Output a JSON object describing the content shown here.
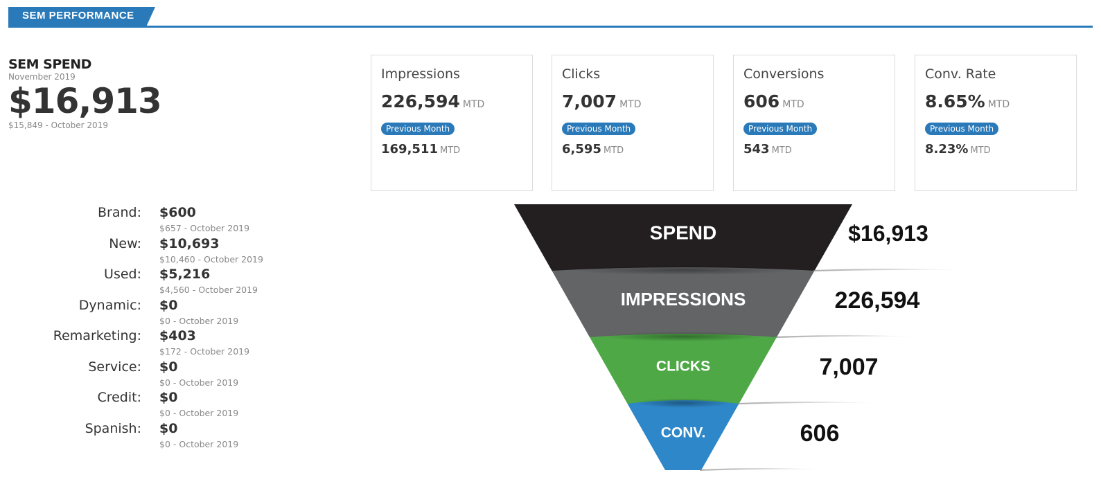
{
  "header": {
    "title": "SEM PERFORMANCE"
  },
  "spend": {
    "title": "SEM SPEND",
    "period": "November 2019",
    "value": "$16,913",
    "previous": "$15,849 - October 2019"
  },
  "breakdown": [
    {
      "label": "Brand:",
      "value": "$600",
      "previous": "$657 - October 2019"
    },
    {
      "label": "New:",
      "value": "$10,693",
      "previous": "$10,460 - October 2019"
    },
    {
      "label": "Used:",
      "value": "$5,216",
      "previous": "$4,560 - October 2019"
    },
    {
      "label": "Dynamic:",
      "value": "$0",
      "previous": "$0 - October 2019"
    },
    {
      "label": "Remarketing:",
      "value": "$403",
      "previous": "$172 - October 2019"
    },
    {
      "label": "Service:",
      "value": "$0",
      "previous": "$0 - October 2019"
    },
    {
      "label": "Credit:",
      "value": "$0",
      "previous": "$0 - October 2019"
    },
    {
      "label": "Spanish:",
      "value": "$0",
      "previous": "$0 - October 2019"
    }
  ],
  "kpis": [
    {
      "name": "Impressions",
      "value": "226,594",
      "unit": "MTD",
      "badge": "Previous Month",
      "previous": "169,511",
      "previous_unit": "MTD"
    },
    {
      "name": "Clicks",
      "value": "7,007",
      "unit": "MTD",
      "badge": "Previous Month",
      "previous": "6,595",
      "previous_unit": "MTD"
    },
    {
      "name": "Conversions",
      "value": "606",
      "unit": "MTD",
      "badge": "Previous Month",
      "previous": "543",
      "previous_unit": "MTD"
    },
    {
      "name": "Conv. Rate",
      "value": "8.65%",
      "unit": "MTD",
      "badge": "Previous Month",
      "previous": "8.23%",
      "previous_unit": "MTD"
    }
  ],
  "chart_data": {
    "type": "funnel",
    "stages": [
      {
        "label": "SPEND",
        "value": "$16,913",
        "color": "#231f20",
        "text_color": "#ffffff"
      },
      {
        "label": "IMPRESSIONS",
        "value": "226,594",
        "color": "#636466",
        "text_color": "#ffffff"
      },
      {
        "label": "CLICKS",
        "value": "7,007",
        "color": "#4ea846",
        "text_color": "#ffffff"
      },
      {
        "label": "CONV.",
        "value": "606",
        "color": "#2e87c8",
        "text_color": "#ffffff"
      }
    ]
  }
}
